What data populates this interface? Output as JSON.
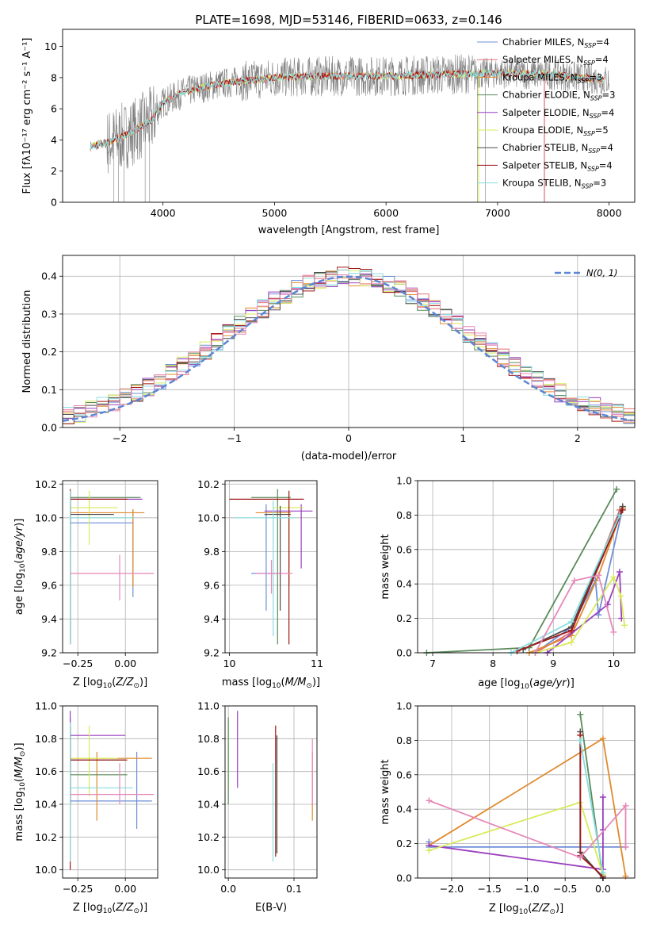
{
  "title": "PLATE=1698, MJD=53146, FIBERID=0633, z=0.146",
  "colors": {
    "Chabrier MILES": "#6d8fd8",
    "Salpeter MILES": "#e36f6f",
    "Kroupa MILES": "#e08a2e",
    "Chabrier ELODIE": "#5a8a5a",
    "Salpeter ELODIE": "#9a3fc0",
    "Kroupa ELODIE": "#d8ea5a",
    "Chabrier STELIB": "#4c4c4c",
    "Salpeter STELIB": "#a01818",
    "Kroupa STELIB": "#88dde0",
    "Pink": "#e688b8",
    "Data": "#808080",
    "Gaussian": "#5b86d4"
  },
  "chart_data": [
    {
      "id": "spectrum",
      "type": "line",
      "title": "PLATE=1698, MJD=53146, FIBERID=0633, z=0.146",
      "xlabel": "wavelength [Angstrom, rest frame]",
      "ylabel": "Flux [fλ10⁻¹⁷ erg cm⁻² s⁻¹ A⁻¹]",
      "xlim": [
        3100,
        8230
      ],
      "ylim": [
        0,
        11.1
      ],
      "xticks": [
        "4000",
        "5000",
        "6000",
        "7000",
        "8000"
      ],
      "yticks": [
        "0",
        "2",
        "4",
        "6",
        "8",
        "10"
      ],
      "grid": false,
      "legend_position": "top-right",
      "legend": [
        {
          "label": "Chabrier MILES",
          "nssp": "4"
        },
        {
          "label": "Salpeter MILES",
          "nssp": "4"
        },
        {
          "label": "Kroupa MILES",
          "nssp": "3"
        },
        {
          "label": "Chabrier ELODIE",
          "nssp": "3"
        },
        {
          "label": "Salpeter ELODIE",
          "nssp": "4"
        },
        {
          "label": "Kroupa ELODIE",
          "nssp": "5"
        },
        {
          "label": "Chabrier STELIB",
          "nssp": "4"
        },
        {
          "label": "Salpeter STELIB",
          "nssp": "4"
        },
        {
          "label": "Kroupa STELIB",
          "nssp": "3"
        }
      ],
      "continuum": [
        [
          3350,
          3.6
        ],
        [
          3500,
          3.8
        ],
        [
          3700,
          4.4
        ],
        [
          3900,
          5.3
        ],
        [
          4000,
          6.4
        ],
        [
          4200,
          7.1
        ],
        [
          4500,
          7.6
        ],
        [
          5000,
          8.0
        ],
        [
          5500,
          8.1
        ],
        [
          6000,
          8.1
        ],
        [
          6500,
          8.2
        ],
        [
          7000,
          8.3
        ],
        [
          7500,
          8.2
        ],
        [
          8000,
          7.8
        ]
      ],
      "model_range": [
        3350,
        7950
      ]
    },
    {
      "id": "residual-histogram",
      "type": "bar",
      "xlabel": "(data-model)/error",
      "ylabel": "Normed distribution",
      "xlim": [
        -2.5,
        2.5
      ],
      "ylim": [
        0,
        0.455
      ],
      "xticks": [
        "−2",
        "−1",
        "0",
        "1",
        "2"
      ],
      "yticks": [
        "0.0",
        "0.1",
        "0.2",
        "0.3",
        "0.4"
      ],
      "grid": true,
      "legend_position": "top-right",
      "gaussian_label": "N(0, 1)",
      "bin_width": 0.1
    },
    {
      "id": "age-vs-z",
      "type": "scatter",
      "xlabel": "Z [log10(Z/Z⊙)]",
      "ylabel": "age [log10(age/yr)]",
      "xlim": [
        -0.33,
        0.17
      ],
      "ylim": [
        9.2,
        10.22
      ],
      "xticks": [
        "−0.25",
        "0.00"
      ],
      "yticks": [
        "9.2",
        "9.4",
        "9.6",
        "9.8",
        "10.0",
        "10.2"
      ],
      "grid": true,
      "points": [
        {
          "series": "Chabrier MILES",
          "x": 0.04,
          "y": 9.97,
          "xe": [
            -0.29,
            0.04
          ],
          "ye": [
            9.53,
            10.05
          ]
        },
        {
          "series": "Kroupa MILES",
          "x": 0.04,
          "y": 10.03,
          "xe": [
            -0.29,
            0.1
          ],
          "ye": [
            9.59,
            10.05
          ]
        },
        {
          "series": "Chabrier ELODIE",
          "x": -0.29,
          "y": 10.12,
          "xe": [
            -0.29,
            0.08
          ],
          "ye": [
            9.25,
            10.16
          ]
        },
        {
          "series": "Salpeter ELODIE",
          "x": -0.29,
          "y": 10.11,
          "xe": [
            -0.29,
            0.09
          ],
          "ye": [
            9.25,
            10.16
          ]
        },
        {
          "series": "Kroupa ELODIE",
          "x": -0.19,
          "y": 10.06,
          "xe": [
            -0.29,
            -0.04
          ],
          "ye": [
            9.84,
            10.16
          ]
        },
        {
          "series": "Chabrier STELIB",
          "x": -0.29,
          "y": 10.02,
          "xe": [
            -0.29,
            -0.06
          ],
          "ye": [
            9.83,
            10.16
          ]
        },
        {
          "series": "Salpeter STELIB",
          "x": -0.29,
          "y": 10.11,
          "xe": [
            -0.29,
            0.01
          ],
          "ye": [
            9.26,
            10.17
          ]
        },
        {
          "series": "Kroupa STELIB",
          "x": -0.29,
          "y": 10.0,
          "xe": [
            -0.29,
            0.05
          ],
          "ye": [
            9.25,
            10.16
          ]
        },
        {
          "series": "Pink",
          "x": -0.03,
          "y": 9.67,
          "xe": [
            -0.29,
            0.15
          ],
          "ye": [
            9.51,
            9.78
          ]
        }
      ]
    },
    {
      "id": "age-vs-mass",
      "type": "scatter",
      "xlabel": "mass [log10(M/M⊙)]",
      "ylabel": "",
      "xlim": [
        9.95,
        11.0
      ],
      "ylim": [
        9.2,
        10.22
      ],
      "xticks": [
        "10",
        "11"
      ],
      "yticks": [
        "9.2",
        "9.4",
        "9.6",
        "9.8",
        "10.0",
        "10.2"
      ],
      "grid": true,
      "points": [
        {
          "series": "Chabrier MILES",
          "x": 10.42,
          "y": 9.67,
          "xe": [
            10.25,
            10.6
          ],
          "ye": [
            9.45,
            10.08
          ]
        },
        {
          "series": "Kroupa MILES",
          "x": 10.68,
          "y": 10.03,
          "xe": [
            10.3,
            10.7
          ],
          "ye": [
            9.6,
            10.08
          ]
        },
        {
          "series": "Chabrier ELODIE",
          "x": 10.55,
          "y": 10.12,
          "xe": [
            10.25,
            10.7
          ],
          "ye": [
            9.25,
            10.17
          ]
        },
        {
          "series": "Salpeter ELODIE",
          "x": 10.82,
          "y": 10.04,
          "xe": [
            10.4,
            10.95
          ],
          "ye": [
            9.7,
            10.08
          ]
        },
        {
          "series": "Kroupa ELODIE",
          "x": 10.68,
          "y": 10.06,
          "xe": [
            10.5,
            10.85
          ],
          "ye": [
            9.83,
            10.16
          ]
        },
        {
          "series": "Chabrier STELIB",
          "x": 10.58,
          "y": 10.02,
          "xe": [
            10.4,
            10.7
          ],
          "ye": [
            9.45,
            10.07
          ]
        },
        {
          "series": "Salpeter STELIB",
          "x": 10.68,
          "y": 10.11,
          "xe": [
            10.0,
            10.85
          ],
          "ye": [
            9.25,
            10.16
          ]
        },
        {
          "series": "Kroupa STELIB",
          "x": 10.5,
          "y": 10.0,
          "xe": [
            10.05,
            10.75
          ],
          "ye": [
            9.3,
            10.1
          ]
        },
        {
          "series": "Pink",
          "x": 10.48,
          "y": 9.67,
          "xe": [
            10.3,
            10.72
          ],
          "ye": [
            9.55,
            9.75
          ]
        }
      ]
    },
    {
      "id": "mass-weight-vs-age",
      "type": "line",
      "xlabel": "age [log10(age/yr)]",
      "ylabel": "mass weight",
      "xlim": [
        6.75,
        10.35
      ],
      "ylim": [
        0,
        1.0
      ],
      "xticks": [
        "7",
        "8",
        "9",
        "10"
      ],
      "yticks": [
        "0.0",
        "0.2",
        "0.4",
        "0.6",
        "0.8",
        "1.0"
      ],
      "grid": true,
      "series": [
        {
          "name": "Chabrier MILES",
          "points": [
            [
              8.7,
              0.0
            ],
            [
              9.3,
              0.15
            ],
            [
              9.7,
              0.42
            ],
            [
              9.75,
              0.22
            ],
            [
              10.15,
              0.84
            ]
          ]
        },
        {
          "name": "Salpeter MILES",
          "points": [
            [
              8.7,
              0.0
            ],
            [
              9.3,
              0.12
            ],
            [
              10.1,
              0.83
            ]
          ]
        },
        {
          "name": "Kroupa MILES",
          "points": [
            [
              8.6,
              0.0
            ],
            [
              9.3,
              0.1
            ],
            [
              9.75,
              0.45
            ],
            [
              10.15,
              0.84
            ]
          ]
        },
        {
          "name": "Chabrier ELODIE",
          "points": [
            [
              6.9,
              0.0
            ],
            [
              8.6,
              0.03
            ],
            [
              10.05,
              0.95
            ]
          ]
        },
        {
          "name": "Salpeter ELODIE",
          "points": [
            [
              8.9,
              0.0
            ],
            [
              9.9,
              0.28
            ],
            [
              10.1,
              0.47
            ],
            [
              10.13,
              0.2
            ]
          ]
        },
        {
          "name": "Kroupa ELODIE",
          "points": [
            [
              8.7,
              0.0
            ],
            [
              9.3,
              0.06
            ],
            [
              10.0,
              0.44
            ],
            [
              10.12,
              0.33
            ],
            [
              10.18,
              0.16
            ]
          ]
        },
        {
          "name": "Chabrier STELIB",
          "points": [
            [
              8.5,
              0.02
            ],
            [
              9.3,
              0.15
            ],
            [
              10.15,
              0.85
            ]
          ]
        },
        {
          "name": "Salpeter STELIB",
          "points": [
            [
              8.4,
              0.01
            ],
            [
              9.3,
              0.13
            ],
            [
              10.15,
              0.83
            ]
          ]
        },
        {
          "name": "Kroupa STELIB",
          "points": [
            [
              8.3,
              0.0
            ],
            [
              9.3,
              0.18
            ],
            [
              10.1,
              0.8
            ]
          ]
        },
        {
          "name": "Pink",
          "points": [
            [
              8.7,
              0.0
            ],
            [
              9.35,
              0.42
            ],
            [
              9.75,
              0.45
            ],
            [
              10.0,
              0.12
            ]
          ]
        }
      ]
    },
    {
      "id": "mass-vs-z",
      "type": "scatter",
      "xlabel": "Z [log10(Z/Z⊙)]",
      "ylabel": "mass [log10(M/M⊙)]",
      "xlim": [
        -0.33,
        0.17
      ],
      "ylim": [
        9.95,
        11.0
      ],
      "xticks": [
        "−0.25",
        "0.00"
      ],
      "yticks": [
        "10.0",
        "10.2",
        "10.4",
        "10.6",
        "10.8",
        "11.0"
      ],
      "grid": true,
      "points": [
        {
          "series": "Chabrier MILES",
          "x": 0.06,
          "y": 10.42,
          "xe": [
            -0.29,
            0.14
          ],
          "ye": [
            10.25,
            10.72
          ]
        },
        {
          "series": "Kroupa MILES",
          "x": -0.15,
          "y": 10.68,
          "xe": [
            -0.29,
            0.14
          ],
          "ye": [
            10.3,
            10.72
          ]
        },
        {
          "series": "Chabrier ELODIE",
          "x": -0.29,
          "y": 10.58,
          "xe": [
            -0.29,
            0.01
          ],
          "ye": [
            10.4,
            10.93
          ]
        },
        {
          "series": "Salpeter ELODIE",
          "x": -0.29,
          "y": 10.82,
          "xe": [
            -0.29,
            0.0
          ],
          "ye": [
            10.4,
            10.97
          ]
        },
        {
          "series": "Kroupa ELODIE",
          "x": -0.19,
          "y": 10.68,
          "xe": [
            -0.29,
            -0.04
          ],
          "ye": [
            10.45,
            10.88
          ]
        },
        {
          "series": "Chabrier STELIB",
          "x": -0.29,
          "y": 10.67,
          "xe": [
            -0.29,
            0.0
          ],
          "ye": [
            10.4,
            10.87
          ]
        },
        {
          "series": "Salpeter STELIB",
          "x": -0.29,
          "y": 10.67,
          "xe": [
            -0.29,
            0.01
          ],
          "ye": [
            10.0,
            10.87
          ]
        },
        {
          "series": "Kroupa STELIB",
          "x": -0.29,
          "y": 10.5,
          "xe": [
            -0.29,
            0.04
          ],
          "ye": [
            10.05,
            10.9
          ]
        },
        {
          "series": "Pink",
          "x": -0.03,
          "y": 10.46,
          "xe": [
            -0.29,
            0.15
          ],
          "ye": [
            10.4,
            10.65
          ]
        }
      ]
    },
    {
      "id": "mass-vs-ebv",
      "type": "scatter",
      "xlabel": "E(B-V)",
      "ylabel": "",
      "xlim": [
        -0.005,
        0.135
      ],
      "ylim": [
        9.95,
        11.0
      ],
      "xticks": [
        "0.0",
        "0.1"
      ],
      "yticks": [
        "10.0",
        "10.2",
        "10.4",
        "10.6",
        "10.8",
        "11.0"
      ],
      "grid": true,
      "points": [
        {
          "series": "Kroupa ELODIE",
          "x": 0.0,
          "y": 10.68,
          "ye": [
            10.48,
            10.88
          ]
        },
        {
          "series": "Chabrier ELODIE",
          "x": 0.0,
          "y": 10.58,
          "ye": [
            10.4,
            10.93
          ]
        },
        {
          "series": "Salpeter ELODIE",
          "x": 0.014,
          "y": 10.82,
          "ye": [
            10.5,
            10.97
          ]
        },
        {
          "series": "Kroupa STELIB",
          "x": 0.068,
          "y": 10.5,
          "ye": [
            10.05,
            10.65
          ]
        },
        {
          "series": "Salpeter STELIB",
          "x": 0.072,
          "y": 10.67,
          "ye": [
            10.08,
            10.88
          ]
        },
        {
          "series": "Chabrier STELIB",
          "x": 0.074,
          "y": 10.67,
          "ye": [
            10.1,
            10.82
          ]
        },
        {
          "series": "Kroupa MILES",
          "x": 0.128,
          "y": 10.68,
          "ye": [
            10.3,
            10.72
          ]
        },
        {
          "series": "Pink",
          "x": 0.128,
          "y": 10.6,
          "ye": [
            10.4,
            10.8
          ]
        }
      ]
    },
    {
      "id": "mass-weight-vs-z",
      "type": "line",
      "xlabel": "Z [log10(Z/Z⊙)]",
      "ylabel": "mass weight",
      "xlim": [
        -2.45,
        0.42
      ],
      "ylim": [
        0,
        1.0
      ],
      "xticks": [
        "−2.0",
        "−1.5",
        "−1.0",
        "−0.5",
        "0.0"
      ],
      "yticks": [
        "0.0",
        "0.2",
        "0.4",
        "0.6",
        "0.8",
        "1.0"
      ],
      "grid": true,
      "series": [
        {
          "name": "Chabrier MILES",
          "points": [
            [
              -2.3,
              0.21
            ],
            [
              -2.3,
              0.18
            ],
            [
              0.3,
              0.18
            ]
          ]
        },
        {
          "name": "Kroupa MILES",
          "points": [
            [
              -2.3,
              0.19
            ],
            [
              0.0,
              0.81
            ],
            [
              0.3,
              0.01
            ]
          ]
        },
        {
          "name": "Chabrier ELODIE",
          "points": [
            [
              -0.3,
              0.95
            ],
            [
              0.0,
              0.0
            ]
          ]
        },
        {
          "name": "Salpeter ELODIE",
          "points": [
            [
              -2.3,
              0.19
            ],
            [
              0.0,
              0.05
            ],
            [
              0.0,
              0.47
            ],
            [
              0.0,
              0.28
            ]
          ]
        },
        {
          "name": "Kroupa ELODIE",
          "points": [
            [
              -2.3,
              0.16
            ],
            [
              -0.3,
              0.44
            ],
            [
              0.0,
              0.02
            ]
          ]
        },
        {
          "name": "Chabrier STELIB",
          "points": [
            [
              -0.3,
              0.85
            ],
            [
              -0.3,
              0.15
            ],
            [
              0.0,
              0.0
            ]
          ]
        },
        {
          "name": "Salpeter STELIB",
          "points": [
            [
              -0.3,
              0.83
            ],
            [
              -0.3,
              0.13
            ],
            [
              0.0,
              0.01
            ]
          ]
        },
        {
          "name": "Kroupa STELIB",
          "points": [
            [
              -0.3,
              0.8
            ],
            [
              0.0,
              0.03
            ]
          ]
        },
        {
          "name": "Pink",
          "points": [
            [
              -2.3,
              0.45
            ],
            [
              -0.3,
              0.12
            ],
            [
              0.3,
              0.42
            ],
            [
              0.3,
              0.18
            ]
          ]
        }
      ]
    }
  ]
}
